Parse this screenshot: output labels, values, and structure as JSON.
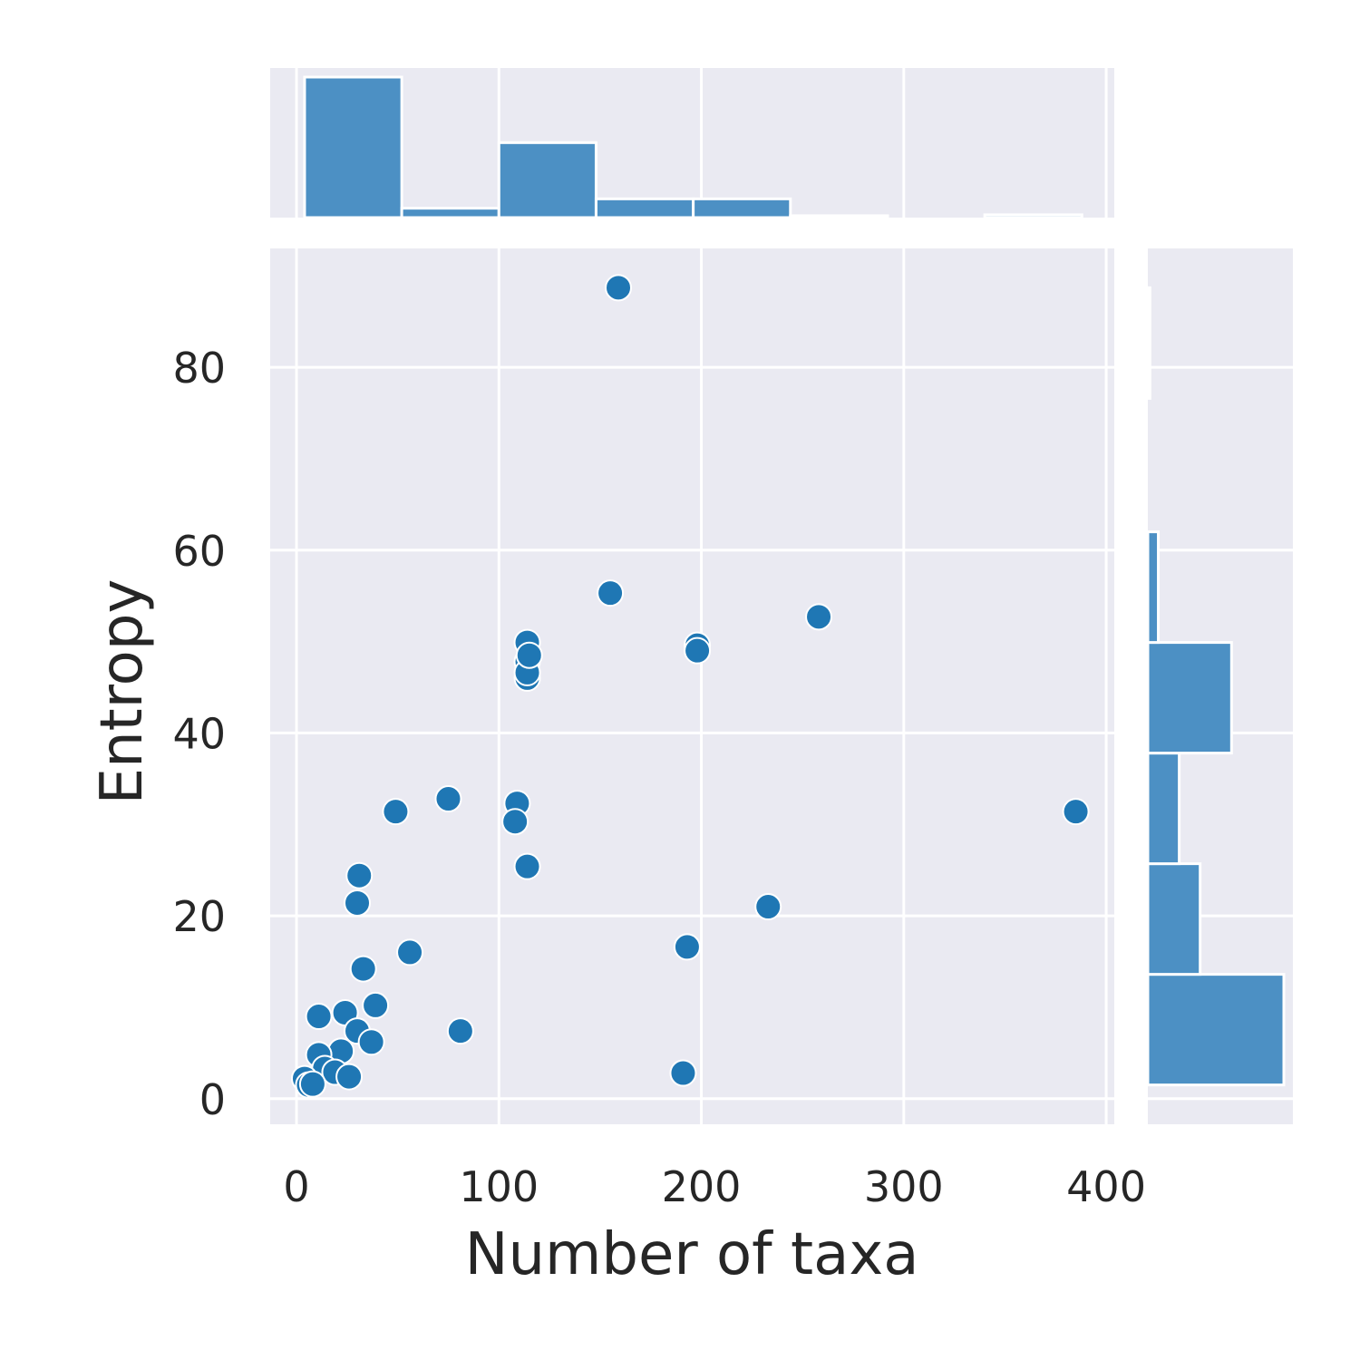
{
  "chart_data": {
    "type": "scatter",
    "title": "",
    "xlabel": "Number of taxa",
    "ylabel": "Entropy",
    "xlim": [
      -13,
      404
    ],
    "ylim": [
      -2.8,
      93
    ],
    "xticks": [
      "0",
      "100",
      "200",
      "300",
      "400"
    ],
    "yticks": [
      "0",
      "20",
      "40",
      "60",
      "80"
    ],
    "grid": true,
    "colors": {
      "point": "#1f77b4",
      "bar": "#4c90c4",
      "background": "#eaeaf2",
      "grid": "#ffffff",
      "text": "#262626"
    },
    "points": [
      {
        "x": 159,
        "y": 88.7
      },
      {
        "x": 155,
        "y": 55.3
      },
      {
        "x": 258,
        "y": 52.7
      },
      {
        "x": 114,
        "y": 49.9
      },
      {
        "x": 114,
        "y": 47.8
      },
      {
        "x": 114,
        "y": 46.0
      },
      {
        "x": 114,
        "y": 46.6
      },
      {
        "x": 115,
        "y": 48.5
      },
      {
        "x": 198,
        "y": 49.6
      },
      {
        "x": 198,
        "y": 49.0
      },
      {
        "x": 75,
        "y": 32.8
      },
      {
        "x": 49,
        "y": 31.4
      },
      {
        "x": 109,
        "y": 32.3
      },
      {
        "x": 108,
        "y": 30.3
      },
      {
        "x": 114,
        "y": 25.4
      },
      {
        "x": 385,
        "y": 31.4
      },
      {
        "x": 31,
        "y": 24.4
      },
      {
        "x": 30,
        "y": 21.4
      },
      {
        "x": 233,
        "y": 21.0
      },
      {
        "x": 56,
        "y": 16.0
      },
      {
        "x": 193,
        "y": 16.6
      },
      {
        "x": 33,
        "y": 14.2
      },
      {
        "x": 39,
        "y": 10.2
      },
      {
        "x": 11,
        "y": 9.0
      },
      {
        "x": 24,
        "y": 9.4
      },
      {
        "x": 30,
        "y": 7.4
      },
      {
        "x": 81,
        "y": 7.4
      },
      {
        "x": 37,
        "y": 6.2
      },
      {
        "x": 22,
        "y": 5.2
      },
      {
        "x": 11,
        "y": 4.8
      },
      {
        "x": 14,
        "y": 3.3
      },
      {
        "x": 19,
        "y": 2.9
      },
      {
        "x": 26,
        "y": 2.4
      },
      {
        "x": 191,
        "y": 2.8
      },
      {
        "x": 4,
        "y": 2.2
      },
      {
        "x": 6,
        "y": 1.5
      },
      {
        "x": 8,
        "y": 1.6
      }
    ],
    "x_histogram": {
      "bin_edges": [
        4,
        52,
        100,
        148,
        196,
        244,
        292,
        340,
        388
      ],
      "counts": [
        15,
        1,
        8,
        2,
        2,
        0.2,
        0,
        0.3
      ]
    },
    "y_histogram": {
      "bin_edges": [
        1.5,
        13.6,
        25.7,
        37.8,
        49.9,
        62.0,
        74.1,
        86.2,
        88.7
      ],
      "counts": [
        13,
        5,
        3,
        8,
        1,
        0,
        0.2,
        0.2
      ],
      "note_bins": "top bin spans 76.6-88.7"
    }
  }
}
